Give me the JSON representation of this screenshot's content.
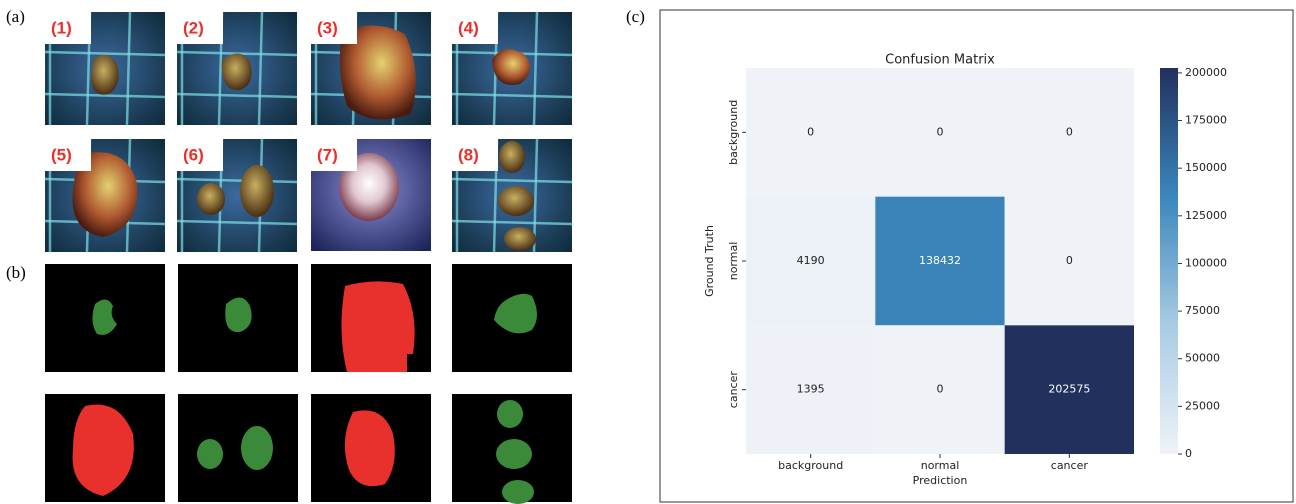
{
  "panel_labels": {
    "a": "(a)",
    "b": "(b)",
    "c": "(c)"
  },
  "image_labels": [
    "(1)",
    "(2)",
    "(3)",
    "(4)",
    "(5)",
    "(6)",
    "(7)",
    "(8)"
  ],
  "chart_data": {
    "type": "heatmap",
    "title": "Confusion Matrix",
    "x_label": "Prediction",
    "y_label": "Ground Truth",
    "x_categories": [
      "background",
      "normal",
      "cancer"
    ],
    "y_categories": [
      "background",
      "normal",
      "cancer"
    ],
    "values": [
      [
        0,
        0,
        0
      ],
      [
        4190,
        138432,
        0
      ],
      [
        1395,
        0,
        202575
      ]
    ],
    "zlim": [
      0,
      202575
    ],
    "zticks": [
      0,
      25000,
      50000,
      75000,
      100000,
      125000,
      150000,
      175000,
      200000
    ],
    "colormap": [
      "#eff3f8",
      "#a9cbe4",
      "#3a87bd",
      "#22305e"
    ]
  }
}
